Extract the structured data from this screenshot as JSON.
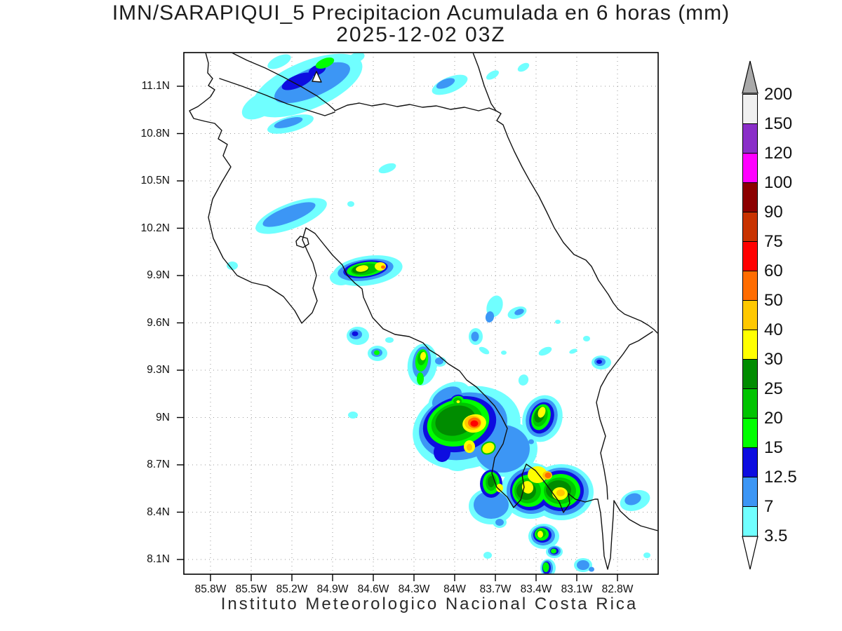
{
  "title": {
    "line1": "IMN/SARAPIQUI_5 Precipitacion Acumulada en 6 horas (mm)",
    "line2": "2025-12-02 03Z"
  },
  "footer": "Instituto Meteorologico Nacional Costa Rica",
  "axes": {
    "lat_labels": [
      "11.1N",
      "10.8N",
      "10.5N",
      "10.2N",
      "9.9N",
      "9.6N",
      "9.3N",
      "9N",
      "8.7N",
      "8.4N",
      "8.1N"
    ],
    "lon_labels": [
      "85.8W",
      "85.5W",
      "85.2W",
      "84.9W",
      "84.6W",
      "84.3W",
      "84W",
      "83.7W",
      "83.4W",
      "83.1W",
      "82.8W"
    ]
  },
  "colorbar": {
    "labels": [
      "200",
      "150",
      "120",
      "100",
      "90",
      "75",
      "60",
      "50",
      "40",
      "30",
      "25",
      "20",
      "15",
      "12.5",
      "7",
      "3.5"
    ],
    "segment_colors_top_to_bottom": [
      "#f0f0f0",
      "#8a2ec8",
      "#ff00ff",
      "#8c0000",
      "#c83200",
      "#ff0000",
      "#ff6c00",
      "#ffc800",
      "#ffff00",
      "#008c00",
      "#00c400",
      "#00ff00",
      "#0d0de0",
      "#3c96f5",
      "#70ffff"
    ],
    "above_max_color": "#a9a9a9",
    "below_min_color": "#ffffff"
  },
  "chart_data": {
    "type": "heatmap",
    "title": "IMN/SARAPIQUI_5 Precipitacion Acumulada en 6 horas (mm)",
    "valid_time": "2025-12-02 03Z",
    "units": "mm",
    "colorbar_levels_mm": [
      3.5,
      7,
      12.5,
      15,
      20,
      25,
      30,
      40,
      50,
      60,
      75,
      90,
      100,
      120,
      150,
      200
    ],
    "lat_ticks": [
      "11.1N",
      "10.8N",
      "10.5N",
      "10.2N",
      "9.9N",
      "9.6N",
      "9.3N",
      "9N",
      "8.7N",
      "8.4N",
      "8.1N"
    ],
    "lon_ticks": [
      "85.8W",
      "85.5W",
      "85.2W",
      "84.9W",
      "84.6W",
      "84.3W",
      "84W",
      "83.7W",
      "83.4W",
      "83.1W",
      "82.8W"
    ],
    "region": "Costa Rica",
    "legend_position": "right",
    "grid": "dotted",
    "max_band_observed_mm": "60-75",
    "heavy_rain_centers": [
      "south Pacific zone near 9N 83.9W (red core 60-75mm)",
      "Golfo Dulce / Osa area 8.4-8.7N 83.2-83.7W (orange 50-60mm)",
      "central Pacific coast 9.9N 84.6W (orange spot)"
    ]
  }
}
